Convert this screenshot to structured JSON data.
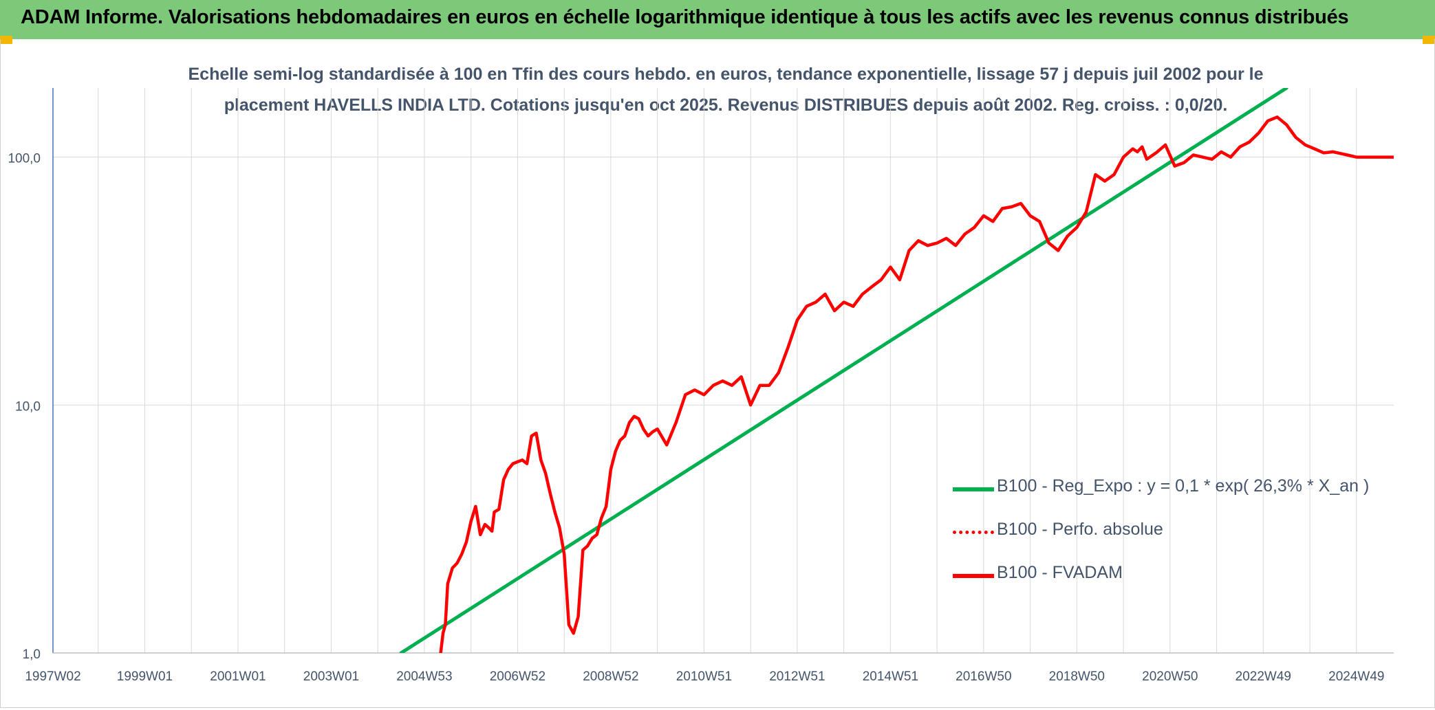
{
  "header": {
    "title": "ADAM Informe. Valorisations hebdomadaires en euros en échelle logarithmique identique à tous les actifs avec les revenus connus distribués"
  },
  "colors": {
    "banner": "#7dc97a",
    "accent": "#f2b705",
    "trend": "#00b050",
    "series": "#ff0000",
    "grid": "#d9d9d9",
    "axis_text": "#44546a"
  },
  "chart_data": {
    "type": "line",
    "title_line1": "Echelle semi-log standardisée à 100 en Tfin des cours hebdo. en euros, tendance exponentielle, lissage 57 j depuis juil 2002 pour le",
    "title_line2": "placement HAVELLS INDIA LTD. Cotations jusqu'en oct 2025. Revenus DISTRIBUES depuis août 2002. Reg. croiss. : 0,0/20.",
    "y_scale": "log",
    "ylim": [
      1,
      190
    ],
    "y_ticks": [
      {
        "value": 1,
        "label": "1,0"
      },
      {
        "value": 10,
        "label": "10,0"
      },
      {
        "value": 100,
        "label": "100,0"
      }
    ],
    "xlim": [
      1997.03,
      2025.8
    ],
    "x_ticks": [
      {
        "value": 1997.03,
        "label": "1997W02"
      },
      {
        "value": 1999.0,
        "label": "1999W01"
      },
      {
        "value": 2001.0,
        "label": "2001W01"
      },
      {
        "value": 2003.0,
        "label": "2003W01"
      },
      {
        "value": 2005.0,
        "label": "2004W53"
      },
      {
        "value": 2007.0,
        "label": "2006W52"
      },
      {
        "value": 2009.0,
        "label": "2008W52"
      },
      {
        "value": 2011.0,
        "label": "2010W51"
      },
      {
        "value": 2013.0,
        "label": "2012W51"
      },
      {
        "value": 2015.0,
        "label": "2014W51"
      },
      {
        "value": 2017.0,
        "label": "2016W50"
      },
      {
        "value": 2019.0,
        "label": "2018W50"
      },
      {
        "value": 2021.0,
        "label": "2020W50"
      },
      {
        "value": 2023.0,
        "label": "2022W49"
      },
      {
        "value": 2025.0,
        "label": "2024W49"
      }
    ],
    "legend_position": "right",
    "series": [
      {
        "name": "B100 - Reg_Expo : y = 0,1 * exp( 26,3% *  X_an )",
        "style": "solid-green",
        "x": [
          2004.5,
          2023.5
        ],
        "y": [
          1.0,
          190
        ]
      },
      {
        "name": "B100 - Perfo. absolue",
        "style": "dotted-red",
        "x": [],
        "y": []
      },
      {
        "name": "B100 - FVADAM",
        "style": "solid-red",
        "x": [
          2005.35,
          2005.4,
          2005.45,
          2005.5,
          2005.6,
          2005.7,
          2005.8,
          2005.9,
          2006.0,
          2006.1,
          2006.2,
          2006.3,
          2006.38,
          2006.45,
          2006.5,
          2006.6,
          2006.7,
          2006.8,
          2006.9,
          2007.0,
          2007.1,
          2007.2,
          2007.3,
          2007.4,
          2007.5,
          2007.6,
          2007.7,
          2007.8,
          2007.9,
          2008.0,
          2008.1,
          2008.2,
          2008.3,
          2008.4,
          2008.5,
          2008.6,
          2008.7,
          2008.8,
          2008.9,
          2009.0,
          2009.1,
          2009.2,
          2009.3,
          2009.4,
          2009.5,
          2009.6,
          2009.7,
          2009.8,
          2009.9,
          2010.0,
          2010.2,
          2010.4,
          2010.6,
          2010.8,
          2011.0,
          2011.2,
          2011.4,
          2011.6,
          2011.8,
          2012.0,
          2012.2,
          2012.4,
          2012.6,
          2012.8,
          2013.0,
          2013.2,
          2013.4,
          2013.6,
          2013.8,
          2014.0,
          2014.2,
          2014.4,
          2014.6,
          2014.8,
          2015.0,
          2015.2,
          2015.4,
          2015.6,
          2015.8,
          2016.0,
          2016.2,
          2016.4,
          2016.6,
          2016.8,
          2017.0,
          2017.2,
          2017.4,
          2017.6,
          2017.8,
          2018.0,
          2018.2,
          2018.4,
          2018.6,
          2018.8,
          2019.0,
          2019.2,
          2019.4,
          2019.6,
          2019.8,
          2020.0,
          2020.2,
          2020.3,
          2020.4,
          2020.5,
          2020.7,
          2020.9,
          2021.1,
          2021.3,
          2021.5,
          2021.7,
          2021.9,
          2022.1,
          2022.3,
          2022.5,
          2022.7,
          2022.9,
          2023.1,
          2023.3,
          2023.5,
          2023.7,
          2023.9,
          2024.1,
          2024.3,
          2024.5,
          2024.7,
          2024.8,
          2024.9,
          2025.0,
          2025.2,
          2025.4,
          2025.6,
          2025.8
        ],
        "y": [
          1.0,
          1.2,
          1.3,
          1.9,
          2.2,
          2.3,
          2.5,
          2.8,
          3.4,
          3.9,
          3.0,
          3.3,
          3.2,
          3.1,
          3.7,
          3.8,
          5.0,
          5.5,
          5.8,
          5.9,
          6.0,
          5.8,
          7.5,
          7.7,
          6.0,
          5.3,
          4.4,
          3.7,
          3.2,
          2.5,
          1.3,
          1.2,
          1.4,
          2.6,
          2.7,
          2.9,
          3.0,
          3.5,
          3.9,
          5.5,
          6.5,
          7.2,
          7.5,
          8.5,
          9.0,
          8.8,
          8.0,
          7.5,
          7.8,
          8.0,
          6.9,
          8.5,
          11.0,
          11.5,
          11.0,
          12.0,
          12.5,
          12.0,
          13.0,
          10.0,
          12.0,
          12.0,
          13.5,
          17.0,
          22.0,
          25.0,
          26.0,
          28.0,
          24.0,
          26.0,
          25.0,
          28.0,
          30.0,
          32.0,
          36.0,
          32.0,
          42.0,
          46.0,
          44.0,
          45.0,
          47.0,
          44.0,
          49.0,
          52.0,
          58.0,
          55.0,
          62.0,
          63.0,
          65.0,
          58.0,
          55.0,
          45.0,
          42.0,
          48.0,
          52.0,
          60.0,
          85.0,
          80.0,
          85.0,
          100.0,
          108.0,
          105.0,
          110.0,
          98.0,
          104.0,
          112.0,
          92.0,
          95.0,
          102.0,
          100.0,
          98.0,
          105.0,
          100.0,
          110.0,
          115.0,
          125.0,
          140.0,
          145.0,
          135.0,
          120.0,
          112.0,
          108.0,
          104.0,
          105.0,
          103.0,
          102.0,
          101.0,
          100.0,
          100.0,
          100.0,
          100.0,
          100.0
        ]
      }
    ]
  }
}
